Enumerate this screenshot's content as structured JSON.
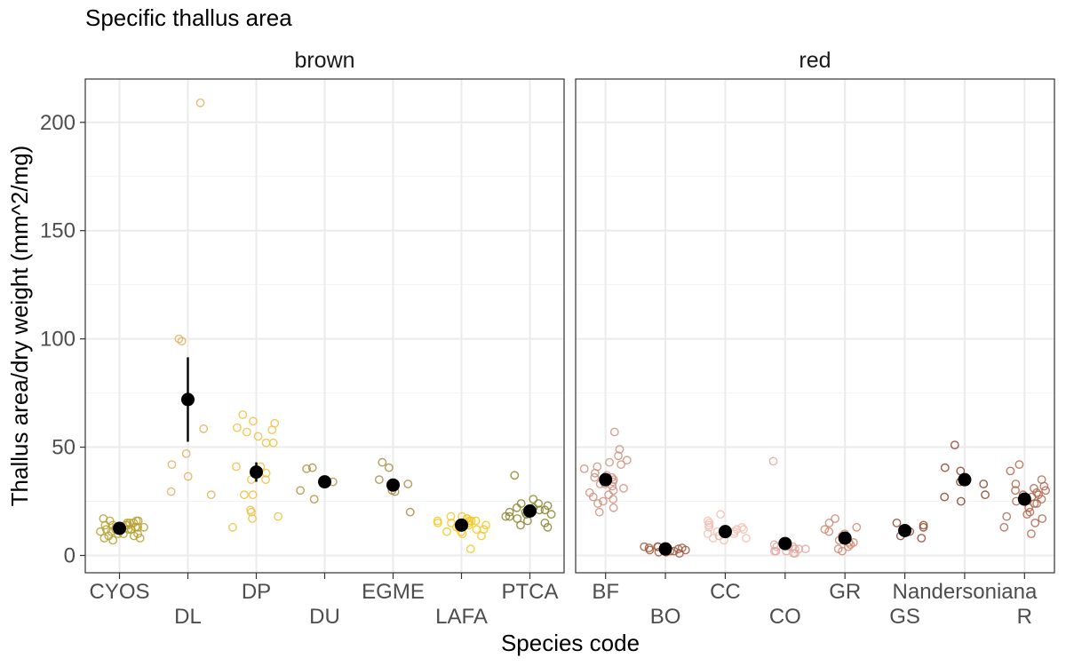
{
  "chart_data": {
    "type": "scatter",
    "title": "Specific thallus area",
    "xlabel": "Species code",
    "ylabel": "Thallus area/dry weight (mm^2/mg)",
    "ylim": [
      -8,
      220
    ],
    "yticks": [
      0,
      50,
      100,
      150,
      200
    ],
    "grid": true,
    "legend": "none",
    "panels": [
      {
        "name": "brown",
        "categories": [
          "CYOS",
          "DL",
          "DP",
          "DU",
          "EGME",
          "LAFA",
          "PTCA"
        ],
        "groups": [
          {
            "code": "CYOS",
            "color": "#b8a030",
            "mean": 12.5,
            "se": 1.2,
            "points": [
              15,
              16,
              14,
              13,
              12,
              14,
              17,
              16,
              15,
              13,
              12,
              11,
              9,
              8,
              10,
              12,
              14,
              15,
              13,
              16,
              11,
              10,
              12,
              14,
              9,
              7,
              8,
              10,
              12,
              13
            ]
          },
          {
            "code": "DL",
            "color": "#e0b060",
            "mean": 72,
            "se": 19.5,
            "points": [
              58.5,
              42,
              29.5,
              100,
              99,
              36.5,
              28,
              47,
              209
            ]
          },
          {
            "code": "DP",
            "color": "#f0c040",
            "mean": 38.5,
            "se": 4.5,
            "points": [
              65,
              62,
              61,
              58,
              57,
              55,
              52,
              52,
              59,
              41,
              41,
              35,
              35,
              38,
              28,
              21,
              20,
              17,
              18,
              28,
              13
            ]
          },
          {
            "code": "DU",
            "color": "#b09040",
            "mean": 34,
            "se": 1.5,
            "points": [
              40.5,
              40,
              34,
              30,
              26
            ]
          },
          {
            "code": "EGME",
            "color": "#a88a40",
            "mean": 32.5,
            "se": 2.5,
            "points": [
              43,
              40.5,
              35,
              33,
              30,
              29.5,
              20
            ]
          },
          {
            "code": "LAFA",
            "color": "#f5c820",
            "mean": 14,
            "se": 1.0,
            "points": [
              17,
              16,
              15,
              14,
              13,
              18,
              16,
              15,
              14,
              12,
              11,
              10,
              9,
              17,
              16,
              15,
              14,
              13,
              12,
              3,
              18,
              16,
              14,
              11
            ]
          },
          {
            "code": "PTCA",
            "color": "#8a8530",
            "mean": 20.5,
            "se": 1.5,
            "points": [
              37,
              26,
              24,
              23,
              22,
              21,
              20,
              19,
              18,
              17,
              16,
              15,
              14,
              13,
              22,
              21,
              20,
              19,
              18,
              24
            ]
          }
        ]
      },
      {
        "name": "red",
        "categories": [
          "BF",
          "BO",
          "CC",
          "CO",
          "GR",
          "GS",
          "Nandersoniana",
          "R"
        ],
        "groups": [
          {
            "code": "BF",
            "color": "#d09080",
            "mean": 35,
            "se": 2.0,
            "points": [
              57,
              49,
              46,
              44,
              43,
              42,
              41,
              40,
              38,
              37,
              36,
              35,
              34,
              33,
              32,
              31,
              30,
              29,
              28,
              27,
              26,
              25,
              24,
              22,
              20,
              33,
              36
            ]
          },
          {
            "code": "BO",
            "color": "#a05a40",
            "mean": 3,
            "se": 0.3,
            "points": [
              4,
              3.5,
              3,
              2.5,
              2,
              1.5,
              1,
              3,
              4,
              2,
              3,
              2.5,
              3.5,
              1.5,
              4,
              2
            ]
          },
          {
            "code": "CC",
            "color": "#f0c0b0",
            "mean": 11,
            "se": 0.8,
            "points": [
              19,
              16,
              15,
              14,
              13,
              12,
              11,
              10,
              9,
              8,
              7,
              12,
              11,
              10,
              13,
              9,
              8
            ]
          },
          {
            "code": "CO",
            "color": "#e0a8a0",
            "mean": 5.5,
            "se": 1.5,
            "points": [
              43.5,
              5,
              4,
              3,
              2,
              1,
              4,
              3,
              2,
              5,
              3,
              2,
              1,
              4
            ]
          },
          {
            "code": "GR",
            "color": "#d08870",
            "mean": 8,
            "se": 1.2,
            "points": [
              17,
              15,
              13,
              12,
              11,
              10,
              8,
              7,
              6,
              5,
              4,
              3,
              2,
              9,
              6
            ]
          },
          {
            "code": "GS",
            "color": "#904830",
            "mean": 11.5,
            "se": 1.0,
            "points": [
              15,
              14,
              13,
              11,
              9,
              8
            ]
          },
          {
            "code": "Nandersoniana",
            "color": "#8a4028",
            "mean": 35,
            "se": 2.8,
            "points": [
              51,
              40.5,
              39,
              34,
              33,
              28,
              27,
              25
            ]
          },
          {
            "code": "R",
            "color": "#b06850",
            "mean": 26,
            "se": 1.5,
            "points": [
              42,
              39,
              35,
              33,
              32,
              31,
              30,
              29,
              28,
              27,
              26,
              25,
              24,
              22,
              20,
              19,
              18,
              17,
              15,
              13,
              10,
              30,
              28,
              24
            ]
          }
        ]
      }
    ]
  }
}
